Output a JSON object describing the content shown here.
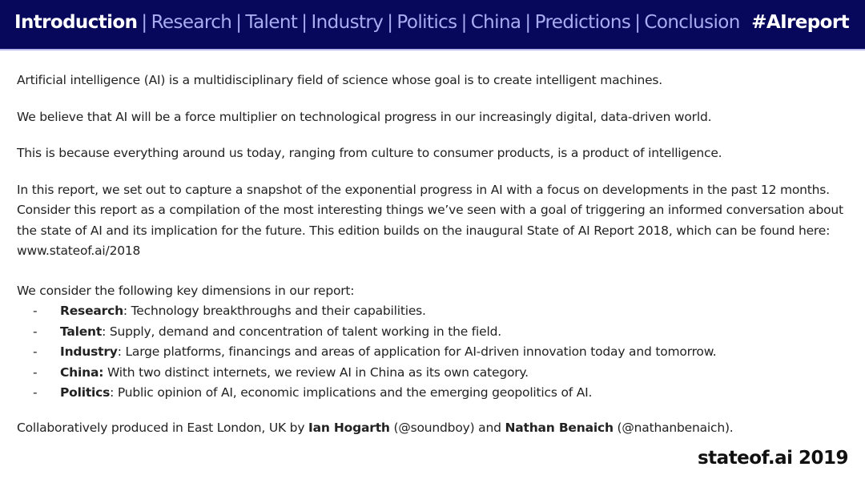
{
  "header": {
    "active": "Introduction",
    "links": [
      "Research",
      "Talent",
      "Industry",
      "Politics",
      "China",
      "Predictions",
      "Conclusion"
    ],
    "separator": "|",
    "hashtag": "#AIreport",
    "bg_color": "#07075c",
    "link_color": "#a9acf0"
  },
  "paragraphs": [
    "Artificial intelligence (AI) is a multidisciplinary field of science whose goal is to create intelligent machines.",
    "We believe that AI will be a force multiplier on technological progress in our increasingly digital, data-driven world.",
    "This is because everything around us today, ranging from culture to consumer products, is a product of intelligence.",
    "In this report, we set out to capture a snapshot of the exponential progress in AI with a focus on developments in the past 12 months. Consider this report as a compilation of the most interesting things we’ve seen with a goal of triggering an informed conversation about the state of AI and its implication for the future. This edition builds on the inaugural State of AI Report 2018, which can be found here: www.stateof.ai/2018"
  ],
  "dimensions": {
    "intro": "We consider the following key dimensions in our report:",
    "bullet": "-",
    "items": [
      {
        "term": "Research",
        "text": ": Technology breakthroughs and their capabilities."
      },
      {
        "term": "Talent",
        "text": ": Supply, demand and concentration of talent working in the field."
      },
      {
        "term": "Industry",
        "text": ": Large platforms, financings and areas of application for AI-driven innovation today and tomorrow."
      },
      {
        "term": "China:",
        "text": " With two distinct internets, we review AI in China as its own category."
      },
      {
        "term": "Politics",
        "text": ": Public opinion of AI, economic implications and the emerging geopolitics of AI."
      }
    ]
  },
  "credit": {
    "prefix": "Collaboratively produced in East London, UK by ",
    "author1": "Ian Hogarth",
    "handle1": " (@soundboy) and ",
    "author2": "Nathan Benaich",
    "handle2": " (@nathanbenaich)."
  },
  "brand": "stateof.ai 2019"
}
